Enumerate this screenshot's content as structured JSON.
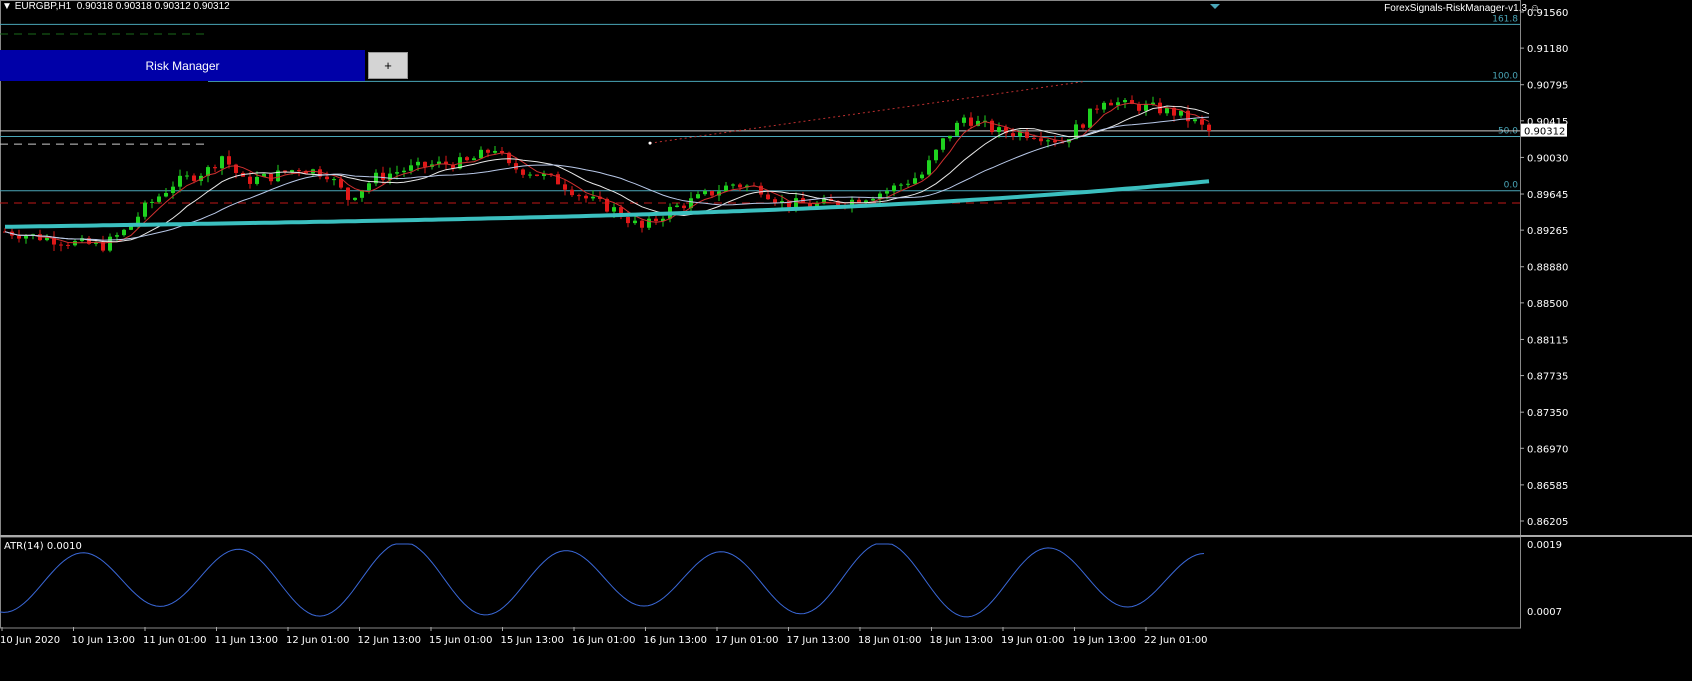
{
  "header": {
    "symbol": "EURGBP,H1",
    "ohlc": "0.90318 0.90318 0.90312 0.90312",
    "indicator": "ForexSignals-RiskManager-v1.3",
    "smiley": "☺"
  },
  "risk_manager": {
    "title": "Risk Manager",
    "plus": "+"
  },
  "price_axis": {
    "ticks": [
      "0.91560",
      "0.91180",
      "0.90795",
      "0.90415",
      "0.90030",
      "0.89645",
      "0.89265",
      "0.88880",
      "0.88500",
      "0.88115",
      "0.87735",
      "0.87350",
      "0.86970",
      "0.86585",
      "0.86205"
    ],
    "current": "0.90312"
  },
  "fib_levels": [
    {
      "label": "161.8",
      "price": 0.9143
    },
    {
      "label": "100.0",
      "price": 0.9083
    },
    {
      "label": "50.0",
      "price": 0.9025
    },
    {
      "label": "0.0",
      "price": 0.8968
    }
  ],
  "time_axis": [
    "10 Jun 2020",
    "10 Jun 13:00",
    "11 Jun 01:00",
    "11 Jun 13:00",
    "12 Jun 01:00",
    "12 Jun 13:00",
    "15 Jun 01:00",
    "15 Jun 13:00",
    "16 Jun 01:00",
    "16 Jun 13:00",
    "17 Jun 01:00",
    "17 Jun 13:00",
    "18 Jun 01:00",
    "18 Jun 13:00",
    "19 Jun 01:00",
    "19 Jun 13:00",
    "22 Jun 01:00"
  ],
  "atr": {
    "label": "ATR(14) 0.0010",
    "ticks": [
      "0.0019",
      "0.0007"
    ]
  },
  "colors": {
    "bull": "#1fd31f",
    "bear": "#e01818",
    "ma_slow": "#3bbfbf",
    "atr": "#3a68d8",
    "fib": "#4aa6b8",
    "panel": "#0000a8"
  },
  "chart_data": {
    "type": "candlestick",
    "title": "EURGBP,H1",
    "ylim": [
      0.86,
      0.917
    ],
    "price_points": [
      [
        0,
        0.8925
      ],
      [
        6,
        0.8918
      ],
      [
        10,
        0.8913
      ],
      [
        14,
        0.891
      ],
      [
        17,
        0.8925
      ],
      [
        20,
        0.895
      ],
      [
        24,
        0.8975
      ],
      [
        29,
        0.899
      ],
      [
        31,
        0.9005
      ],
      [
        34,
        0.8978
      ],
      [
        38,
        0.8983
      ],
      [
        42,
        0.8992
      ],
      [
        46,
        0.8986
      ],
      [
        49,
        0.896
      ],
      [
        53,
        0.8982
      ],
      [
        57,
        0.899
      ],
      [
        61,
        0.8995
      ],
      [
        66,
        0.8998
      ],
      [
        70,
        0.9013
      ],
      [
        72,
        0.8993
      ],
      [
        75,
        0.8988
      ],
      [
        79,
        0.8978
      ],
      [
        83,
        0.896
      ],
      [
        87,
        0.8948
      ],
      [
        91,
        0.8928
      ],
      [
        95,
        0.8948
      ],
      [
        99,
        0.896
      ],
      [
        104,
        0.8975
      ],
      [
        108,
        0.897
      ],
      [
        111,
        0.8955
      ],
      [
        116,
        0.8953
      ],
      [
        121,
        0.8958
      ],
      [
        126,
        0.8968
      ],
      [
        131,
        0.8985
      ],
      [
        134,
        0.902
      ],
      [
        137,
        0.9045
      ],
      [
        142,
        0.903
      ],
      [
        147,
        0.9028
      ],
      [
        151,
        0.902
      ],
      [
        154,
        0.904
      ],
      [
        157,
        0.9065
      ],
      [
        160,
        0.9058
      ],
      [
        164,
        0.9055
      ],
      [
        167,
        0.905
      ],
      [
        170,
        0.904
      ],
      [
        172,
        0.903
      ]
    ]
  }
}
